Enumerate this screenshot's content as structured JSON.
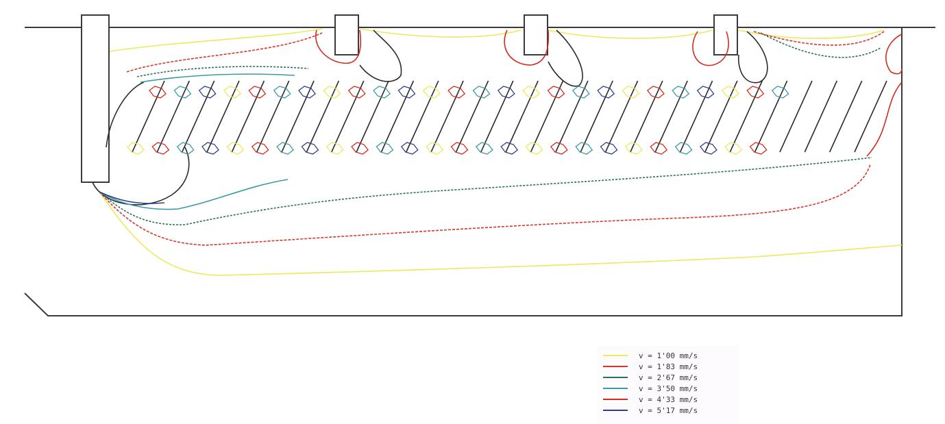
{
  "legend": {
    "items": [
      {
        "label": "v = 1'00 mm/s",
        "color": "#ece95a"
      },
      {
        "label": "v = 1'83 mm/s",
        "color": "#d8352b"
      },
      {
        "label": "v = 2'67 mm/s",
        "color": "#2b6f5a"
      },
      {
        "label": "v = 3'50 mm/s",
        "color": "#3a9aa3"
      },
      {
        "label": "v = 4'33 mm/s",
        "color": "#d32a1f"
      },
      {
        "label": "v = 5'17 mm/s",
        "color": "#2a3f8c"
      }
    ]
  },
  "colors": {
    "outline": "#3a3a3a",
    "background": "#ffffff",
    "legend_background": "#fdfbfd"
  }
}
